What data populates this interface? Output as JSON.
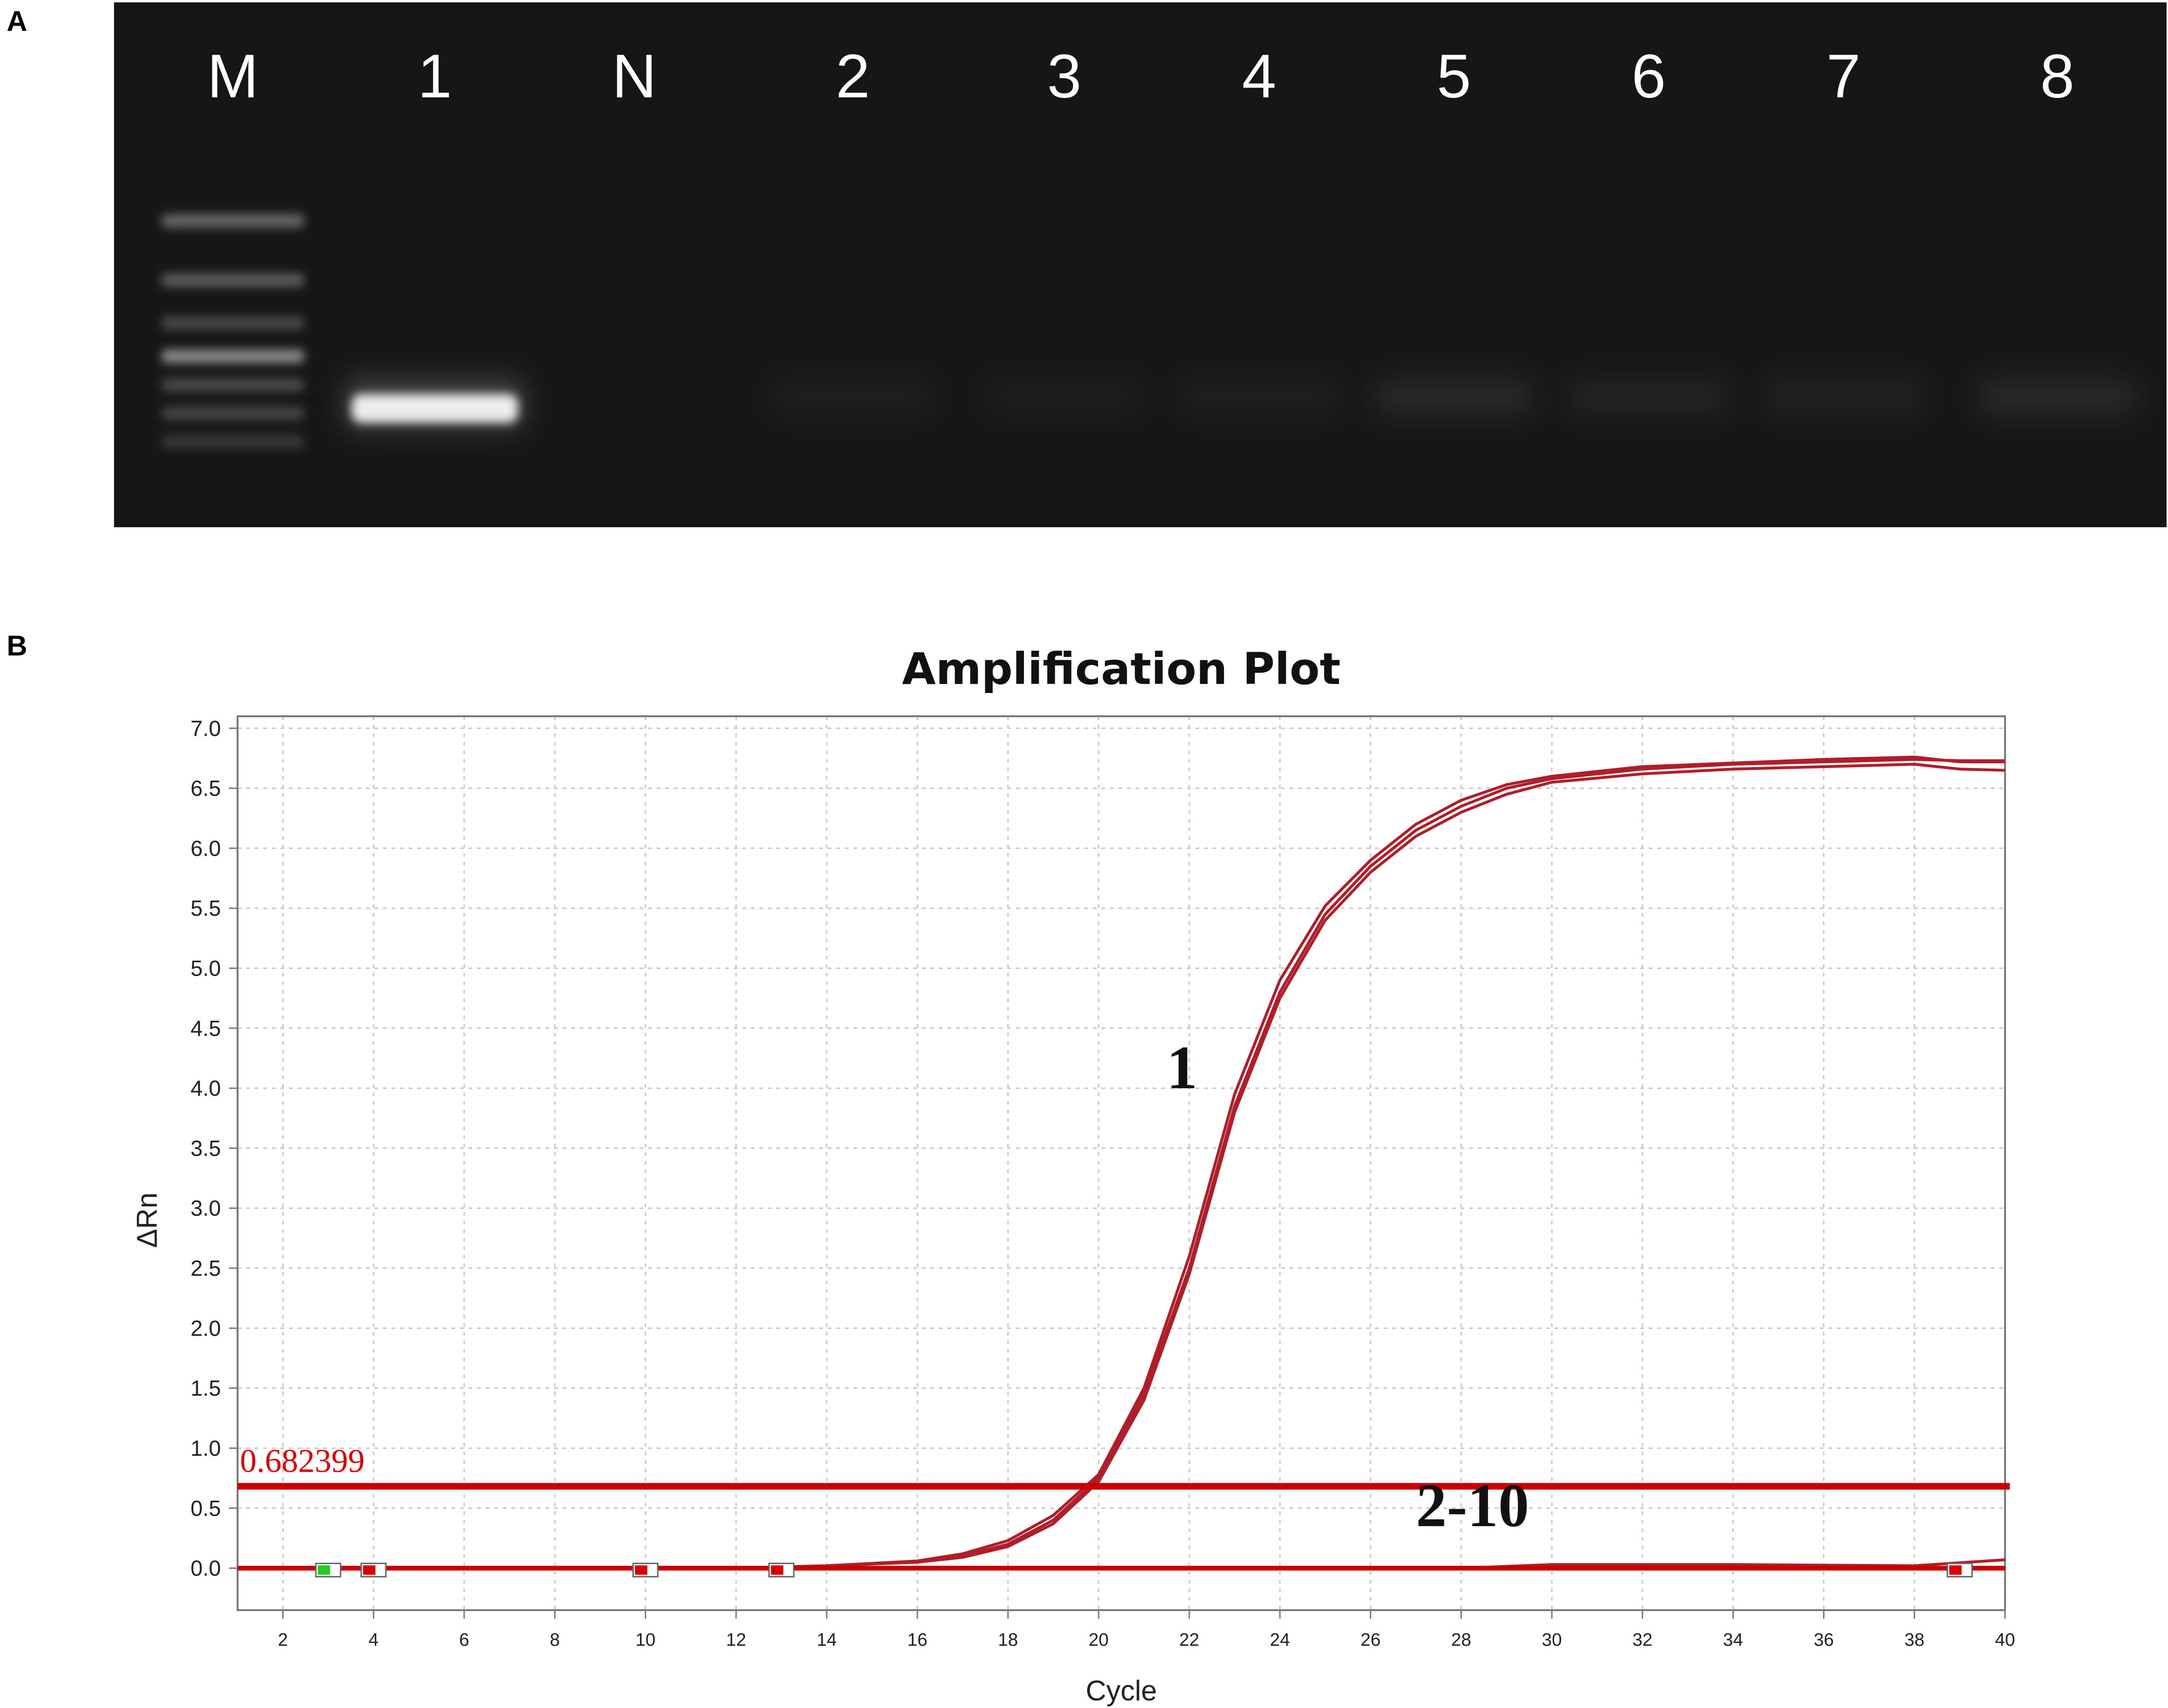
{
  "panels": {
    "a_label": "A",
    "b_label": "B"
  },
  "gel": {
    "lanes": [
      {
        "label": "M",
        "kind": "marker",
        "bands": [
          0.2,
          0.4,
          0.6,
          0.8,
          1.0
        ]
      },
      {
        "label": "1",
        "kind": "sample",
        "band_intensity": 1.0
      },
      {
        "label": "N",
        "kind": "sample",
        "band_intensity": 0.0
      },
      {
        "label": "2",
        "kind": "sample",
        "band_intensity": 0.04
      },
      {
        "label": "3",
        "kind": "sample",
        "band_intensity": 0.03
      },
      {
        "label": "4",
        "kind": "sample",
        "band_intensity": 0.04
      },
      {
        "label": "5",
        "kind": "sample",
        "band_intensity": 0.08
      },
      {
        "label": "6",
        "kind": "sample",
        "band_intensity": 0.06
      },
      {
        "label": "7",
        "kind": "sample",
        "band_intensity": 0.05
      },
      {
        "label": "8",
        "kind": "sample",
        "band_intensity": 0.08
      }
    ],
    "background": "#161616",
    "label_color": "#ffffff"
  },
  "chart_data": {
    "type": "line",
    "title": "Amplification Plot",
    "xlabel": "Cycle",
    "ylabel": "ΔRn",
    "xlim": [
      1,
      40
    ],
    "ylim": [
      -0.35,
      7.1
    ],
    "xticks": [
      2,
      4,
      6,
      8,
      10,
      12,
      14,
      16,
      18,
      20,
      22,
      24,
      26,
      28,
      30,
      32,
      34,
      36,
      38,
      40
    ],
    "yticks": [
      0.0,
      0.5,
      1.0,
      1.5,
      2.0,
      2.5,
      3.0,
      3.5,
      4.0,
      4.5,
      5.0,
      5.5,
      6.0,
      6.5,
      7.0
    ],
    "grid": true,
    "threshold": {
      "value": 0.682399,
      "label": "0.682399"
    },
    "annotations": [
      {
        "text": "1",
        "x": 21.5,
        "y": 4.0
      },
      {
        "text": "2-10",
        "x": 27.0,
        "y": 0.35
      }
    ],
    "series": [
      {
        "x": [
          1,
          4,
          8,
          12,
          14,
          16,
          17,
          18,
          19,
          20,
          21,
          22,
          23,
          24,
          25,
          26,
          27,
          28,
          29,
          30,
          32,
          34,
          36,
          38,
          39,
          40
        ],
        "values": [
          0.0,
          0.0,
          0.0,
          0.0,
          0.02,
          0.05,
          0.1,
          0.2,
          0.4,
          0.75,
          1.45,
          2.5,
          3.85,
          4.8,
          5.45,
          5.85,
          6.15,
          6.35,
          6.5,
          6.58,
          6.66,
          6.7,
          6.72,
          6.74,
          6.73,
          6.73
        ]
      },
      {
        "x": [
          1,
          4,
          8,
          12,
          14,
          16,
          17,
          18,
          19,
          20,
          21,
          22,
          23,
          24,
          25,
          26,
          27,
          28,
          29,
          30,
          32,
          34,
          36,
          38,
          39,
          40
        ],
        "values": [
          0.0,
          0.0,
          0.0,
          0.0,
          0.02,
          0.06,
          0.12,
          0.23,
          0.44,
          0.78,
          1.5,
          2.6,
          3.95,
          4.9,
          5.52,
          5.9,
          6.2,
          6.4,
          6.53,
          6.6,
          6.68,
          6.71,
          6.74,
          6.76,
          6.72,
          6.72
        ]
      },
      {
        "x": [
          1,
          4,
          8,
          12,
          14,
          16,
          17,
          18,
          19,
          20,
          21,
          22,
          23,
          24,
          25,
          26,
          27,
          28,
          29,
          30,
          32,
          34,
          36,
          38,
          39,
          40
        ],
        "values": [
          0.0,
          0.0,
          0.0,
          0.0,
          0.02,
          0.05,
          0.09,
          0.18,
          0.37,
          0.72,
          1.4,
          2.45,
          3.8,
          4.75,
          5.4,
          5.8,
          6.1,
          6.3,
          6.45,
          6.55,
          6.62,
          6.66,
          6.68,
          6.7,
          6.66,
          6.65
        ]
      },
      {
        "x": [
          1,
          10,
          20,
          28,
          30,
          34,
          38,
          40
        ],
        "values": [
          0.0,
          0.0,
          0.0,
          0.0,
          0.03,
          0.03,
          0.02,
          0.07
        ]
      },
      {
        "x": [
          1,
          10,
          20,
          28,
          30,
          34,
          38,
          40
        ],
        "values": [
          0.0,
          0.0,
          0.0,
          0.0,
          0.0,
          0.0,
          0.0,
          0.0
        ]
      }
    ],
    "marker_positions": [
      {
        "x": 3,
        "color": "#22cc22"
      },
      {
        "x": 4,
        "color": "#dd0000"
      },
      {
        "x": 10,
        "color": "#dd0000"
      },
      {
        "x": 13,
        "color": "#dd0000"
      },
      {
        "x": 39,
        "color": "#dd0000"
      }
    ],
    "colors": {
      "curve": "#b01e2a",
      "threshold": "#cc0000",
      "threshold_label": "#dd0000",
      "grid": "#c8c8c8",
      "axis": "#7a7a7a"
    }
  }
}
